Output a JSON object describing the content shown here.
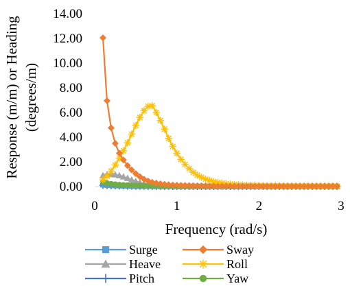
{
  "chart_data": {
    "type": "line",
    "xlabel": "Frequency (rad/s)",
    "ylabel_lines": [
      "Response (m/m) or Heading",
      "(degrees/m)"
    ],
    "xlim": [
      0,
      3
    ],
    "ylim": [
      0,
      14
    ],
    "x_ticks": [
      "0",
      "1",
      "2",
      "3"
    ],
    "y_ticks": [
      "0.00",
      "2.00",
      "4.00",
      "6.00",
      "8.00",
      "10.00",
      "12.00",
      "14.00"
    ],
    "grid": false,
    "legend_position": "bottom",
    "x": [
      0.1,
      0.15,
      0.2,
      0.25,
      0.3,
      0.35,
      0.4,
      0.45,
      0.5,
      0.55,
      0.6,
      0.65,
      0.7,
      0.75,
      0.8,
      0.85,
      0.9,
      0.95,
      1.0,
      1.05,
      1.1,
      1.15,
      1.2,
      1.25,
      1.3,
      1.35,
      1.4,
      1.45,
      1.5,
      1.55,
      1.6,
      1.65,
      1.7,
      1.75,
      1.8,
      1.85,
      1.9,
      1.95,
      2.0,
      2.05,
      2.1,
      2.15,
      2.2,
      2.25,
      2.3,
      2.35,
      2.4,
      2.45,
      2.5,
      2.55,
      2.6,
      2.65,
      2.7,
      2.75,
      2.8,
      2.85,
      2.9,
      2.95
    ],
    "series": [
      {
        "name": "Surge",
        "color": "#5b9bd5",
        "marker": "square",
        "values": [
          0.15,
          0.12,
          0.1,
          0.08,
          0.07,
          0.06,
          0.05,
          0.04,
          0.04,
          0.03,
          0.03,
          0.03,
          0.02,
          0.02,
          0.02,
          0.02,
          0.02,
          0.02,
          0.01,
          0.01,
          0.01,
          0.01,
          0.01,
          0.01,
          0.01,
          0.01,
          0.01,
          0.01,
          0.01,
          0.01,
          0.01,
          0.01,
          0.01,
          0.01,
          0.01,
          0.01,
          0.01,
          0.01,
          0.01,
          0.01,
          0.01,
          0.01,
          0.01,
          0.01,
          0.01,
          0.01,
          0.01,
          0.01,
          0.01,
          0.01,
          0.01,
          0.01,
          0.01,
          0.01,
          0.01,
          0.01,
          0.01,
          0.01
        ]
      },
      {
        "name": "Sway",
        "color": "#ed7d31",
        "marker": "diamond",
        "values": [
          12.05,
          6.95,
          4.75,
          3.5,
          2.7,
          2.15,
          1.7,
          1.35,
          1.05,
          0.8,
          0.6,
          0.45,
          0.35,
          0.28,
          0.22,
          0.18,
          0.15,
          0.13,
          0.11,
          0.1,
          0.09,
          0.08,
          0.07,
          0.06,
          0.06,
          0.05,
          0.05,
          0.05,
          0.04,
          0.04,
          0.04,
          0.04,
          0.03,
          0.03,
          0.03,
          0.03,
          0.03,
          0.03,
          0.03,
          0.02,
          0.02,
          0.02,
          0.02,
          0.02,
          0.02,
          0.02,
          0.02,
          0.02,
          0.02,
          0.02,
          0.02,
          0.02,
          0.02,
          0.02,
          0.02,
          0.02,
          0.02,
          0.02
        ]
      },
      {
        "name": "Heave",
        "color": "#a5a5a5",
        "marker": "triangle",
        "values": [
          0.9,
          0.98,
          1.0,
          0.97,
          0.9,
          0.8,
          0.68,
          0.55,
          0.43,
          0.33,
          0.25,
          0.19,
          0.15,
          0.12,
          0.1,
          0.08,
          0.07,
          0.06,
          0.05,
          0.05,
          0.04,
          0.04,
          0.04,
          0.03,
          0.03,
          0.03,
          0.03,
          0.03,
          0.02,
          0.02,
          0.02,
          0.02,
          0.02,
          0.02,
          0.02,
          0.02,
          0.02,
          0.02,
          0.02,
          0.02,
          0.02,
          0.02,
          0.02,
          0.02,
          0.02,
          0.02,
          0.02,
          0.02,
          0.02,
          0.02,
          0.02,
          0.02,
          0.02,
          0.02,
          0.02,
          0.02,
          0.02,
          0.02
        ]
      },
      {
        "name": "Roll",
        "color": "#ffc000",
        "marker": "star",
        "values": [
          0.55,
          0.85,
          1.25,
          1.75,
          2.3,
          2.9,
          3.55,
          4.25,
          4.95,
          5.6,
          6.15,
          6.5,
          6.55,
          6.0,
          5.35,
          4.65,
          3.9,
          3.25,
          2.7,
          2.2,
          1.8,
          1.45,
          1.15,
          0.92,
          0.75,
          0.6,
          0.5,
          0.4,
          0.33,
          0.28,
          0.23,
          0.2,
          0.17,
          0.15,
          0.13,
          0.11,
          0.1,
          0.09,
          0.08,
          0.07,
          0.07,
          0.06,
          0.06,
          0.05,
          0.05,
          0.05,
          0.04,
          0.04,
          0.04,
          0.04,
          0.03,
          0.03,
          0.03,
          0.03,
          0.03,
          0.03,
          0.03,
          0.03
        ]
      },
      {
        "name": "Pitch",
        "color": "#4472c4",
        "marker": "plus",
        "values": [
          0.1,
          0.08,
          0.07,
          0.06,
          0.05,
          0.05,
          0.04,
          0.04,
          0.03,
          0.03,
          0.03,
          0.02,
          0.02,
          0.02,
          0.02,
          0.02,
          0.02,
          0.01,
          0.01,
          0.01,
          0.01,
          0.01,
          0.01,
          0.01,
          0.01,
          0.01,
          0.01,
          0.01,
          0.01,
          0.01,
          0.01,
          0.01,
          0.01,
          0.01,
          0.01,
          0.01,
          0.01,
          0.01,
          0.01,
          0.01,
          0.01,
          0.01,
          0.01,
          0.01,
          0.01,
          0.01,
          0.01,
          0.01,
          0.01,
          0.01,
          0.01,
          0.01,
          0.01,
          0.01,
          0.01,
          0.01,
          0.01,
          0.01
        ]
      },
      {
        "name": "Yaw",
        "color": "#70ad47",
        "marker": "circle",
        "values": [
          0.35,
          0.28,
          0.22,
          0.18,
          0.15,
          0.13,
          0.11,
          0.1,
          0.09,
          0.08,
          0.07,
          0.07,
          0.06,
          0.06,
          0.05,
          0.05,
          0.05,
          0.05,
          0.04,
          0.04,
          0.04,
          0.04,
          0.04,
          0.03,
          0.03,
          0.03,
          0.03,
          0.03,
          0.03,
          0.03,
          0.03,
          0.03,
          0.03,
          0.03,
          0.03,
          0.03,
          0.03,
          0.03,
          0.03,
          0.03,
          0.03,
          0.03,
          0.03,
          0.03,
          0.03,
          0.03,
          0.03,
          0.03,
          0.03,
          0.03,
          0.03,
          0.03,
          0.03,
          0.03,
          0.03,
          0.03,
          0.03,
          0.03
        ]
      }
    ]
  }
}
